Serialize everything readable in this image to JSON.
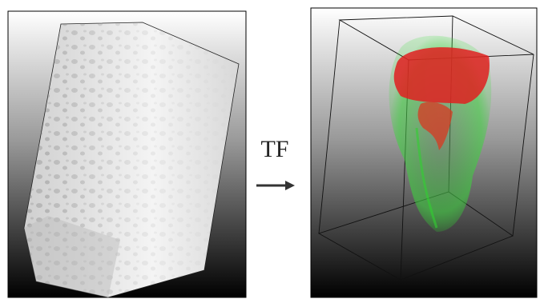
{
  "label": "TF"
}
